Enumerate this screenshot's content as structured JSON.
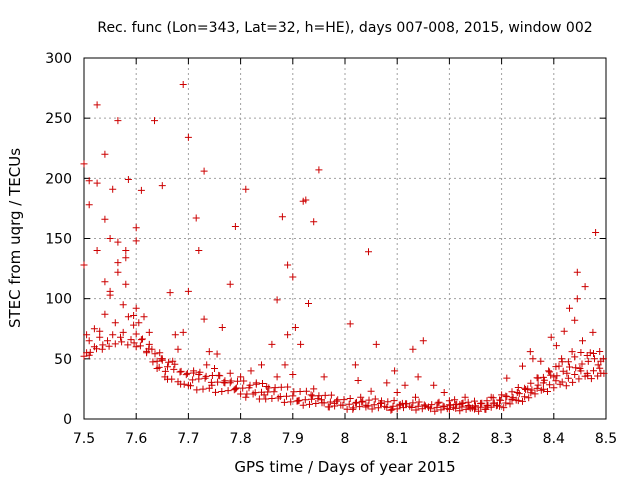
{
  "chart_data": {
    "type": "scatter",
    "title": "Rec. func (Lon=343, Lat=32, h=HE), days 007-008, 2015, window 002",
    "xlabel": "GPS time / Days of year 2015",
    "ylabel": "STEC from uqrg / TECUs",
    "xlim": [
      7.5,
      8.5
    ],
    "ylim": [
      0,
      300
    ],
    "xticks": [
      "7.5",
      "7.6",
      "7.7",
      "7.8",
      "7.9",
      "8",
      "8.1",
      "8.2",
      "8.3",
      "8.4",
      "8.5"
    ],
    "yticks": [
      "0",
      "50",
      "100",
      "150",
      "200",
      "250",
      "300"
    ],
    "grid": true,
    "marker": "+",
    "marker_color": "#cc0000",
    "points": [
      [
        7.5,
        212
      ],
      [
        7.5,
        128
      ],
      [
        7.505,
        55
      ],
      [
        7.505,
        70
      ],
      [
        7.51,
        198
      ],
      [
        7.51,
        178
      ],
      [
        7.51,
        65
      ],
      [
        7.51,
        53
      ],
      [
        7.52,
        60
      ],
      [
        7.52,
        75
      ],
      [
        7.525,
        261
      ],
      [
        7.525,
        196
      ],
      [
        7.525,
        140
      ],
      [
        7.53,
        68
      ],
      [
        7.53,
        73
      ],
      [
        7.535,
        58
      ],
      [
        7.54,
        220
      ],
      [
        7.54,
        166
      ],
      [
        7.54,
        114
      ],
      [
        7.54,
        87
      ],
      [
        7.545,
        65
      ],
      [
        7.55,
        150
      ],
      [
        7.55,
        106
      ],
      [
        7.55,
        103
      ],
      [
        7.555,
        70
      ],
      [
        7.555,
        191
      ],
      [
        7.56,
        80
      ],
      [
        7.565,
        248
      ],
      [
        7.565,
        147
      ],
      [
        7.565,
        130
      ],
      [
        7.565,
        122
      ],
      [
        7.57,
        68
      ],
      [
        7.575,
        95
      ],
      [
        7.575,
        72
      ],
      [
        7.58,
        140
      ],
      [
        7.58,
        134
      ],
      [
        7.58,
        112
      ],
      [
        7.585,
        199
      ],
      [
        7.585,
        85
      ],
      [
        7.59,
        66
      ],
      [
        7.595,
        86
      ],
      [
        7.595,
        78
      ],
      [
        7.6,
        159
      ],
      [
        7.6,
        148
      ],
      [
        7.6,
        92
      ],
      [
        7.6,
        60
      ],
      [
        7.605,
        80
      ],
      [
        7.61,
        190
      ],
      [
        7.61,
        66
      ],
      [
        7.615,
        85
      ],
      [
        7.62,
        55
      ],
      [
        7.625,
        72
      ],
      [
        7.625,
        62
      ],
      [
        7.63,
        58
      ],
      [
        7.635,
        248
      ],
      [
        7.64,
        48
      ],
      [
        7.64,
        42
      ],
      [
        7.645,
        55
      ],
      [
        7.65,
        194
      ],
      [
        7.65,
        50
      ],
      [
        7.655,
        35
      ],
      [
        7.66,
        33
      ],
      [
        7.665,
        105
      ],
      [
        7.67,
        48
      ],
      [
        7.675,
        70
      ],
      [
        7.68,
        58
      ],
      [
        7.685,
        29
      ],
      [
        7.69,
        278
      ],
      [
        7.69,
        72
      ],
      [
        7.7,
        234
      ],
      [
        7.7,
        106
      ],
      [
        7.7,
        28
      ],
      [
        7.71,
        40
      ],
      [
        7.715,
        167
      ],
      [
        7.72,
        140
      ],
      [
        7.72,
        37
      ],
      [
        7.73,
        206
      ],
      [
        7.73,
        83
      ],
      [
        7.735,
        45
      ],
      [
        7.74,
        56
      ],
      [
        7.745,
        28
      ],
      [
        7.75,
        42
      ],
      [
        7.755,
        54
      ],
      [
        7.76,
        36
      ],
      [
        7.765,
        76
      ],
      [
        7.77,
        30
      ],
      [
        7.78,
        112
      ],
      [
        7.78,
        38
      ],
      [
        7.79,
        160
      ],
      [
        7.79,
        25
      ],
      [
        7.8,
        35
      ],
      [
        7.81,
        191
      ],
      [
        7.81,
        18
      ],
      [
        7.82,
        40
      ],
      [
        7.83,
        30
      ],
      [
        7.84,
        45
      ],
      [
        7.845,
        20
      ],
      [
        7.85,
        27
      ],
      [
        7.86,
        62
      ],
      [
        7.87,
        99
      ],
      [
        7.87,
        35
      ],
      [
        7.88,
        168
      ],
      [
        7.885,
        45
      ],
      [
        7.89,
        128
      ],
      [
        7.89,
        70
      ],
      [
        7.9,
        118
      ],
      [
        7.9,
        37
      ],
      [
        7.905,
        76
      ],
      [
        7.91,
        15
      ],
      [
        7.915,
        62
      ],
      [
        7.92,
        181
      ],
      [
        7.925,
        182
      ],
      [
        7.93,
        96
      ],
      [
        7.935,
        20
      ],
      [
        7.94,
        164
      ],
      [
        7.94,
        25
      ],
      [
        7.95,
        207
      ],
      [
        7.955,
        16
      ],
      [
        7.96,
        35
      ],
      [
        7.97,
        10
      ],
      [
        7.98,
        13
      ],
      [
        8.01,
        79
      ],
      [
        8.015,
        8
      ],
      [
        8.02,
        45
      ],
      [
        8.025,
        32
      ],
      [
        8.03,
        18
      ],
      [
        8.04,
        10
      ],
      [
        8.045,
        139
      ],
      [
        8.05,
        23
      ],
      [
        8.06,
        62
      ],
      [
        8.07,
        15
      ],
      [
        8.08,
        30
      ],
      [
        8.09,
        8
      ],
      [
        8.095,
        40
      ],
      [
        8.1,
        22
      ],
      [
        8.11,
        13
      ],
      [
        8.115,
        28
      ],
      [
        8.13,
        58
      ],
      [
        8.135,
        18
      ],
      [
        8.14,
        35
      ],
      [
        8.15,
        65
      ],
      [
        8.16,
        10
      ],
      [
        8.17,
        28
      ],
      [
        8.18,
        14
      ],
      [
        8.19,
        22
      ],
      [
        8.2,
        8
      ],
      [
        8.21,
        16
      ],
      [
        8.22,
        12
      ],
      [
        8.23,
        18
      ],
      [
        8.24,
        9
      ],
      [
        8.25,
        10
      ],
      [
        8.26,
        13
      ],
      [
        8.27,
        8
      ],
      [
        8.28,
        18
      ],
      [
        8.29,
        11
      ],
      [
        8.3,
        20
      ],
      [
        8.31,
        34
      ],
      [
        8.32,
        16
      ],
      [
        8.33,
        22
      ],
      [
        8.34,
        44
      ],
      [
        8.35,
        25
      ],
      [
        8.355,
        56
      ],
      [
        8.36,
        50
      ],
      [
        8.37,
        34
      ],
      [
        8.375,
        48
      ],
      [
        8.38,
        30
      ],
      [
        8.39,
        40
      ],
      [
        8.395,
        68
      ],
      [
        8.4,
        35
      ],
      [
        8.405,
        61
      ],
      [
        8.41,
        44
      ],
      [
        8.415,
        50
      ],
      [
        8.42,
        73
      ],
      [
        8.425,
        38
      ],
      [
        8.43,
        92
      ],
      [
        8.435,
        56
      ],
      [
        8.44,
        82
      ],
      [
        8.445,
        122
      ],
      [
        8.445,
        100
      ],
      [
        8.45,
        42
      ],
      [
        8.455,
        65
      ],
      [
        8.46,
        110
      ],
      [
        8.465,
        36
      ],
      [
        8.47,
        55
      ],
      [
        8.475,
        72
      ],
      [
        8.48,
        155
      ],
      [
        8.485,
        45
      ],
      [
        8.49,
        38
      ],
      [
        8.495,
        50
      ]
    ],
    "tracks": [
      {
        "x": [
          7.5,
          7.55,
          7.6,
          7.65,
          7.7,
          7.75,
          7.8,
          7.85,
          7.9,
          7.95,
          8.0,
          8.1,
          8.2,
          8.25,
          8.3,
          8.35,
          8.4,
          8.45,
          8.5
        ],
        "y": [
          54,
          62,
          64,
          40,
          26,
          24,
          22,
          17,
          14,
          12,
          10,
          9,
          8,
          8,
          10,
          18,
          26,
          33,
          37
        ]
      },
      {
        "x": [
          7.6,
          7.65,
          7.7,
          7.75,
          7.8,
          7.85,
          7.9,
          7.95,
          8.0,
          8.1,
          8.2,
          8.25,
          8.3,
          8.35,
          8.4,
          8.45,
          8.5
        ],
        "y": [
          70,
          48,
          34,
          32,
          26,
          22,
          18,
          15,
          13,
          11,
          10,
          10,
          12,
          20,
          30,
          38,
          42
        ]
      },
      {
        "x": [
          7.65,
          7.7,
          7.75,
          7.8,
          7.85,
          7.9,
          7.95,
          8.0,
          8.1,
          8.15,
          8.2,
          8.25,
          8.3,
          8.35,
          8.4,
          8.45,
          8.5
        ],
        "y": [
          50,
          38,
          36,
          30,
          28,
          24,
          20,
          16,
          14,
          12,
          12,
          11,
          15,
          24,
          36,
          46,
          50
        ]
      },
      {
        "x": [
          8.2,
          8.25,
          8.3,
          8.35,
          8.4,
          8.45,
          8.5
        ],
        "y": [
          14,
          13,
          18,
          28,
          42,
          54,
          56
        ]
      }
    ],
    "track_step": 0.012
  }
}
